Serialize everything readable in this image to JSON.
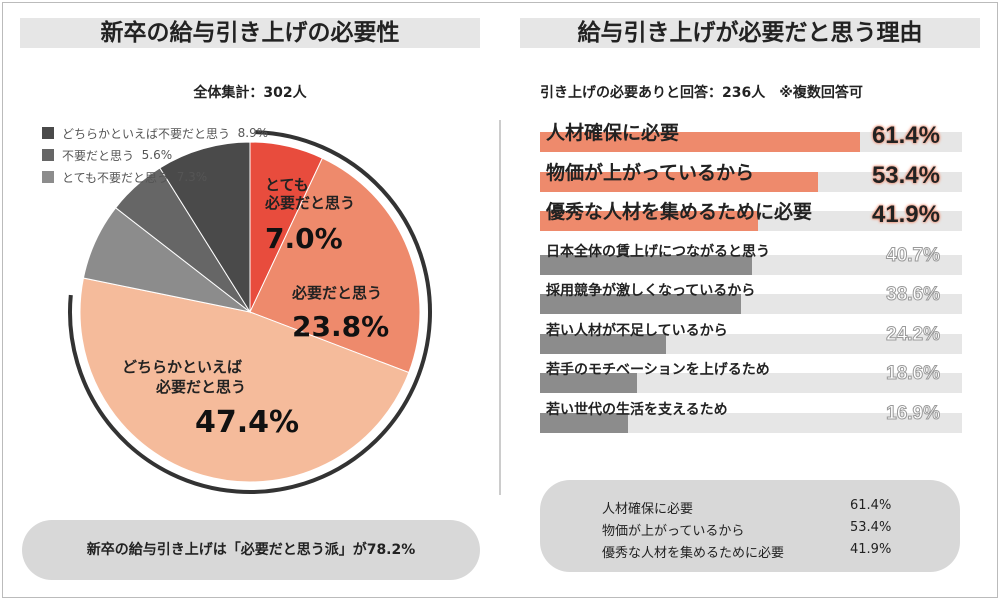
{
  "left": {
    "title": "新卒の給与引き上げの必要性",
    "total": "全体集計：302人",
    "conclusion": "新卒の給与引き上げは「必要だと思う派」が78.2%"
  },
  "right": {
    "title": "給与引き上げが必要だと思う理由",
    "subtitle": "引き上げの必要ありと回答：236人　※複数回答可"
  },
  "chart_data": [
    {
      "type": "pie",
      "title": "新卒の給与引き上げの必要性",
      "start": "top",
      "direction": "clockwise",
      "slices": [
        {
          "label": "とても必要だと思う",
          "value": 7.0,
          "text": "7.0%",
          "color": "#e84c3d"
        },
        {
          "label": "必要だと思う",
          "value": 23.8,
          "text": "23.8%",
          "color": "#ee8a6c"
        },
        {
          "label": "どちらかといえば必要だと思う",
          "value": 47.4,
          "text": "47.4%",
          "color": "#f5bb9b"
        },
        {
          "label": "とても不要だと思う",
          "value": 7.3,
          "text": "7.3%",
          "color": "#8c8c8c"
        },
        {
          "label": "不要だと思う",
          "value": 5.6,
          "text": "5.6%",
          "color": "#666666"
        },
        {
          "label": "どちらかといえば不要だと思う",
          "value": 8.9,
          "text": "8.9%",
          "color": "#4a4a4a"
        }
      ],
      "legend": [
        {
          "label": "どちらかといえば不要だと思う",
          "text": "8.9%",
          "color": "#4a4a4a"
        },
        {
          "label": "不要だと思う",
          "text": "5.6%",
          "color": "#666666"
        },
        {
          "label": "とても不要だと思う",
          "text": "7.3%",
          "color": "#8c8c8c"
        }
      ]
    },
    {
      "type": "bar",
      "orientation": "horizontal",
      "title": "給与引き上げが必要だと思う理由",
      "categories": [
        "人材確保に必要",
        "物価が上がっているから",
        "優秀な人材を集めるために必要",
        "日本全体の賃上げにつながると思う",
        "採用競争が激しくなっているから",
        "若い人材が不足しているから",
        "若手のモチベーションを上げるため",
        "若い世代の生活を支えるため"
      ],
      "values": [
        61.4,
        53.4,
        41.9,
        40.7,
        38.6,
        24.2,
        18.6,
        16.9
      ],
      "labels": [
        "61.4%",
        "53.4%",
        "41.9%",
        "40.7%",
        "38.6%",
        "24.2%",
        "18.6%",
        "16.9%"
      ],
      "highlight_color": "#ee8a6c",
      "other_color": "#8c8c8c"
    }
  ],
  "summary": [
    {
      "label": "人材確保に必要",
      "value": "61.4%"
    },
    {
      "label": "物価が上がっているから",
      "value": "53.4%"
    },
    {
      "label": "優秀な人材を集めるために必要",
      "value": "41.9%"
    }
  ]
}
